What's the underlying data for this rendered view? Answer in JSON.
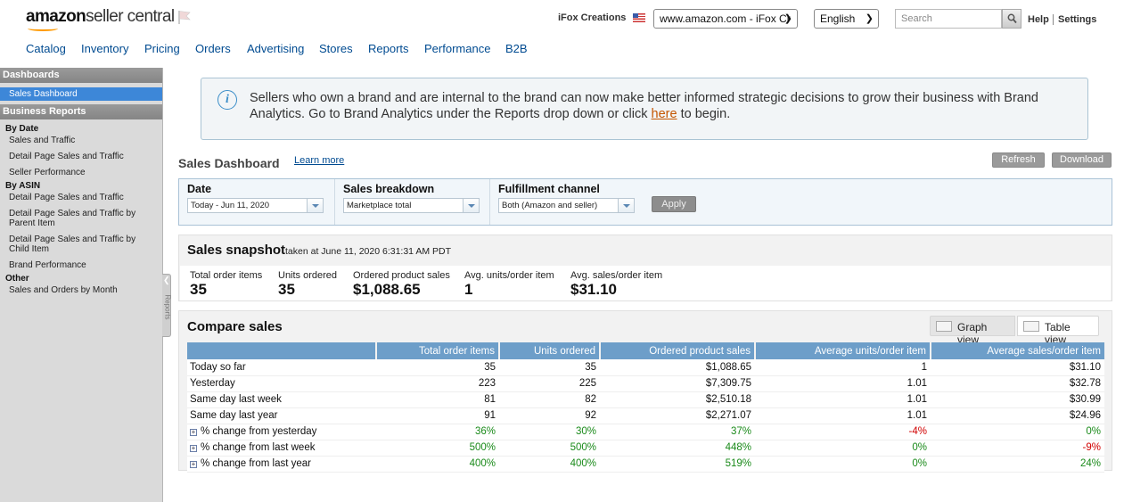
{
  "header": {
    "logo_main": "amazon",
    "logo_sub": "seller central",
    "store_name": "iFox Creations",
    "marketplace": "www.amazon.com - iFox Cr",
    "language": "English",
    "search_placeholder": "Search",
    "help": "Help",
    "settings": "Settings"
  },
  "nav": [
    "Catalog",
    "Inventory",
    "Pricing",
    "Orders",
    "Advertising",
    "Stores",
    "Reports",
    "Performance",
    "B2B"
  ],
  "sidebar": {
    "dashboards_header": "Dashboards",
    "active_item": "Sales Dashboard",
    "business_reports_header": "Business Reports",
    "by_date": "By Date",
    "by_date_links": [
      "Sales and Traffic",
      "Detail Page Sales and Traffic",
      "Seller Performance"
    ],
    "by_asin": "By ASIN",
    "by_asin_links": [
      "Detail Page Sales and Traffic",
      "Detail Page Sales and Traffic by Parent Item",
      "Detail Page Sales and Traffic by Child Item",
      "Brand Performance"
    ],
    "other": "Other",
    "other_links": [
      "Sales and Orders by Month"
    ],
    "tab_label": "Reports"
  },
  "banner": {
    "text_before": "Sellers who own a brand and are internal to the brand can now make better informed strategic decisions to grow their business with Brand Analytics. Go to Brand Analytics under the Reports drop down or click ",
    "link": "here",
    "text_after": " to begin."
  },
  "dashboard": {
    "title": "Sales Dashboard",
    "learn_more": "Learn more",
    "refresh": "Refresh",
    "download": "Download"
  },
  "filters": {
    "date_label": "Date",
    "date_value": "Today - Jun 11, 2020",
    "breakdown_label": "Sales breakdown",
    "breakdown_value": "Marketplace total",
    "channel_label": "Fulfillment channel",
    "channel_value": "Both (Amazon and seller)",
    "apply": "Apply"
  },
  "snapshot": {
    "title": "Sales snapshot",
    "taken_at": "taken at June 11, 2020 6:31:31 AM PDT",
    "metrics": [
      {
        "label": "Total order items",
        "value": "35"
      },
      {
        "label": "Units ordered",
        "value": "35"
      },
      {
        "label": "Ordered product sales",
        "value": "$1,088.65"
      },
      {
        "label": "Avg. units/order item",
        "value": "1"
      },
      {
        "label": "Avg. sales/order item",
        "value": "$31.10"
      }
    ]
  },
  "compare": {
    "title": "Compare sales",
    "graph_view": "Graph view",
    "table_view": "Table view",
    "columns": [
      "",
      "Total order items",
      "Units ordered",
      "Ordered product sales",
      "Average units/order item",
      "Average sales/order item"
    ],
    "rows": [
      [
        "Today so far",
        "35",
        "35",
        "$1,088.65",
        "1",
        "$31.10"
      ],
      [
        "Yesterday",
        "223",
        "225",
        "$7,309.75",
        "1.01",
        "$32.78"
      ],
      [
        "Same day last week",
        "81",
        "82",
        "$2,510.18",
        "1.01",
        "$30.99"
      ],
      [
        "Same day last year",
        "91",
        "92",
        "$2,271.07",
        "1.01",
        "$24.96"
      ]
    ],
    "change_rows": [
      [
        "% change from yesterday",
        "36%",
        "30%",
        "37%",
        "-4%",
        "0%"
      ],
      [
        "% change from last week",
        "500%",
        "500%",
        "448%",
        "0%",
        "-9%"
      ],
      [
        "% change from last year",
        "400%",
        "400%",
        "519%",
        "0%",
        "24%"
      ]
    ],
    "positive_color": "#1a8a1a",
    "negative_color": "#d10000"
  }
}
